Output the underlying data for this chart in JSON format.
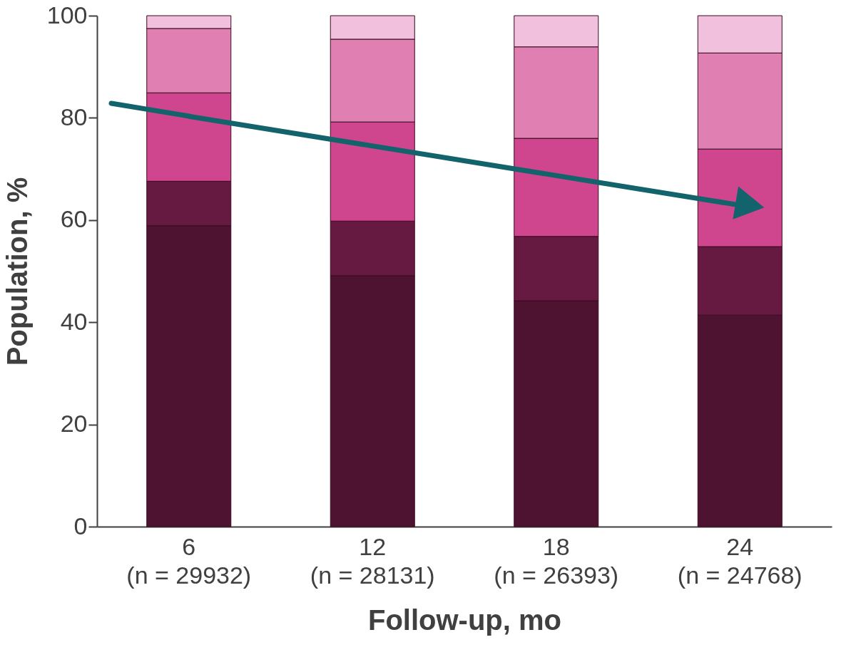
{
  "chart_data": {
    "type": "bar",
    "stacked": true,
    "xlabel": "Follow-up, mo",
    "ylabel": "Population, %",
    "categories": [
      "6\n(n = 29932)",
      "12\n(n = 28131)",
      "18\n(n = 26393)",
      "24\n(n = 24768)"
    ],
    "series": [
      {
        "color": "#4d1330",
        "values": [
          58.9,
          49.1,
          44.2,
          41.4
        ]
      },
      {
        "color": "#661a42",
        "values": [
          8.7,
          10.7,
          12.6,
          13.4
        ]
      },
      {
        "color": "#d0468e",
        "values": [
          17.3,
          19.4,
          19.2,
          19.1
        ]
      },
      {
        "color": "#e080b2",
        "values": [
          12.6,
          16.2,
          17.9,
          18.8
        ]
      },
      {
        "color": "#f0c0dc",
        "values": [
          2.5,
          4.6,
          6.1,
          7.3
        ]
      },
      {
        "type": "line",
        "color": "#12636b",
        "x": [
          "6\n(n = 29932)",
          "24\n(n = 24768)"
        ],
        "values": [
          80.3,
          62.9
        ]
      }
    ],
    "ylim": [
      0,
      100
    ],
    "yticks": [
      0,
      20,
      40,
      60,
      80,
      100
    ],
    "grid": false,
    "legend": false
  }
}
